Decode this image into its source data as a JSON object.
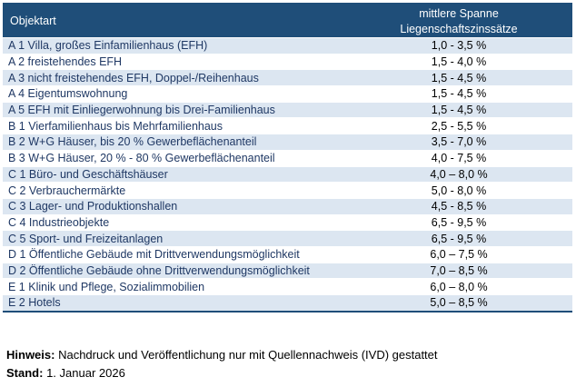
{
  "table": {
    "header": {
      "col1": "Objektart",
      "col2_line1": "mittlere Spanne",
      "col2_line2": "Liegenschaftszinssätze"
    },
    "rows": [
      {
        "type": "A 1 Villa, großes Einfamilienhaus (EFH)",
        "range": "1,0 - 3,5 %"
      },
      {
        "type": "A 2 freistehendes EFH",
        "range": "1,5 - 4,0 %"
      },
      {
        "type": "A 3 nicht freistehendes EFH, Doppel-/Reihenhaus",
        "range": "1,5 - 4,5 %"
      },
      {
        "type": "A 4 Eigentumswohnung",
        "range": "1,5 - 4,5 %"
      },
      {
        "type": "A 5 EFH mit Einliegerwohnung bis Drei-Familienhaus",
        "range": "1,5 - 4,5 %"
      },
      {
        "type": "B 1 Vierfamilienhaus bis Mehrfamilienhaus",
        "range": "2,5 - 5,5 %"
      },
      {
        "type": "B 2 W+G Häuser, bis 20 % Gewerbeflächenanteil",
        "range": "3,5 - 7,0 %"
      },
      {
        "type": "B 3 W+G Häuser, 20 %  - 80 % Gewerbeflächenanteil",
        "range": "4,0 - 7,5 %"
      },
      {
        "type": "C 1 Büro- und Geschäftshäuser",
        "range": "4,0 – 8,0 %"
      },
      {
        "type": "C 2 Verbrauchermärkte",
        "range": "5,0 - 8,0 %"
      },
      {
        "type": "C 3 Lager- und Produktionshallen",
        "range": "4,5 - 8,5 %"
      },
      {
        "type": "C 4 Industrieobjekte",
        "range": "6,5 - 9,5 %"
      },
      {
        "type": "C 5 Sport- und Freizeitanlagen",
        "range": "6,5 - 9,5 %"
      },
      {
        "type": "D 1 Öffentliche Gebäude mit Drittverwendungsmöglichkeit",
        "range": "6,0 – 7,5 %"
      },
      {
        "type": "D 2 Öffentliche Gebäude ohne Drittverwendungsmöglichkeit",
        "range": "7,0 – 8,5 %"
      },
      {
        "type": "E 1 Klinik und Pflege, Sozialimmobilien",
        "range": "6,0 – 8,0 %"
      },
      {
        "type": "E 2 Hotels",
        "range": "5,0 – 8,5 %"
      }
    ]
  },
  "notes": {
    "hint_label": "Hinweis:",
    "hint_text": " Nachdruck und Veröffentlichung nur mit Quellennachweis (IVD) gestattet",
    "stand_label": "Stand:",
    "stand_text": " 1. Januar 2026"
  },
  "colors": {
    "header_bg": "#1f4e79",
    "stripe": "#dce6f1",
    "label_text": "#1f3864"
  }
}
